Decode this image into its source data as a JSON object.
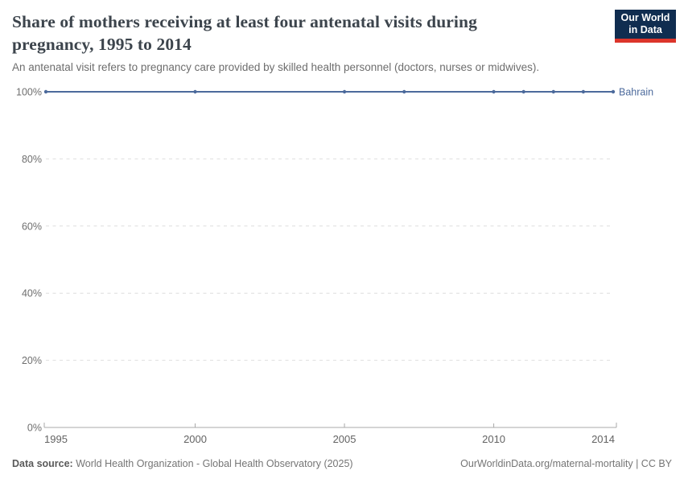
{
  "header": {
    "title": "Share of mothers receiving at least four antenatal visits during pregnancy, 1995 to 2014",
    "subtitle": "An antenatal visit refers to pregnancy care provided by skilled health personnel (doctors, nurses or midwives).",
    "logo": {
      "line1": "Our World",
      "line2": "in Data",
      "bg_color": "#102d50",
      "accent_color": "#dc352b"
    }
  },
  "chart_data": {
    "type": "line",
    "title": "Share of mothers receiving at least four antenatal visits during pregnancy, 1995 to 2014",
    "xlabel": "",
    "ylabel": "",
    "xlim": [
      1995,
      2014
    ],
    "ylim": [
      0,
      100
    ],
    "xticks": [
      1995,
      2000,
      2005,
      2010,
      2014
    ],
    "yticks": [
      0,
      20,
      40,
      60,
      80,
      100
    ],
    "ytick_suffix": "%",
    "grid": "dashed-horizontal",
    "legend_position": "end-of-line-label",
    "series": [
      {
        "name": "Bahrain",
        "color": "#4c6a9c",
        "x": [
          1995,
          2000,
          2005,
          2007,
          2010,
          2011,
          2012,
          2013,
          2014
        ],
        "values": [
          100,
          100,
          100,
          100,
          100,
          100,
          100,
          100,
          100
        ]
      }
    ]
  },
  "footer": {
    "datasource_label": "Data source:",
    "datasource_value": " World Health Organization - Global Health Observatory (2025)",
    "attribution": "OurWorldinData.org/maternal-mortality | CC BY"
  }
}
